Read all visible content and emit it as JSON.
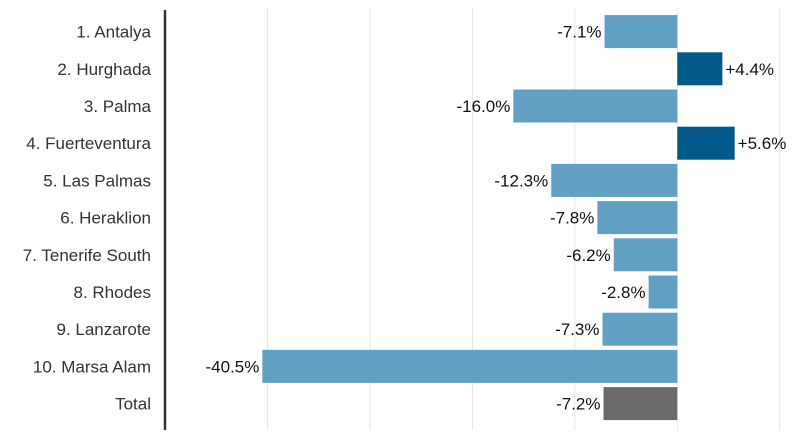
{
  "chart_data": {
    "type": "bar",
    "orientation": "horizontal",
    "title": "",
    "xlabel": "",
    "ylabel": "",
    "categories": [
      "1. Antalya",
      "2. Hurghada",
      "3. Palma",
      "4. Fuerteventura",
      "5. Las Palmas",
      "6. Heraklion",
      "7. Tenerife South",
      "8. Rhodes",
      "9. Lanzarote",
      "10. Marsa Alam",
      "Total"
    ],
    "values": [
      -7.1,
      4.4,
      -16.0,
      5.6,
      -12.3,
      -7.8,
      -6.2,
      -2.8,
      -7.3,
      -40.5,
      -7.2
    ],
    "value_labels": [
      "-7.1%",
      "+4.4%",
      "-16.0%",
      "+5.6%",
      "-12.3%",
      "-7.8%",
      "-6.2%",
      "-2.8%",
      "-7.3%",
      "-40.5%",
      "-7.2%"
    ],
    "xlim": [
      -50,
      11
    ],
    "grid": true,
    "colors": {
      "negative": "#62a0c3",
      "positive": "#02598a",
      "total": "#6a6a6a",
      "grid": "#e4e4e4",
      "axis": "#333333"
    }
  }
}
